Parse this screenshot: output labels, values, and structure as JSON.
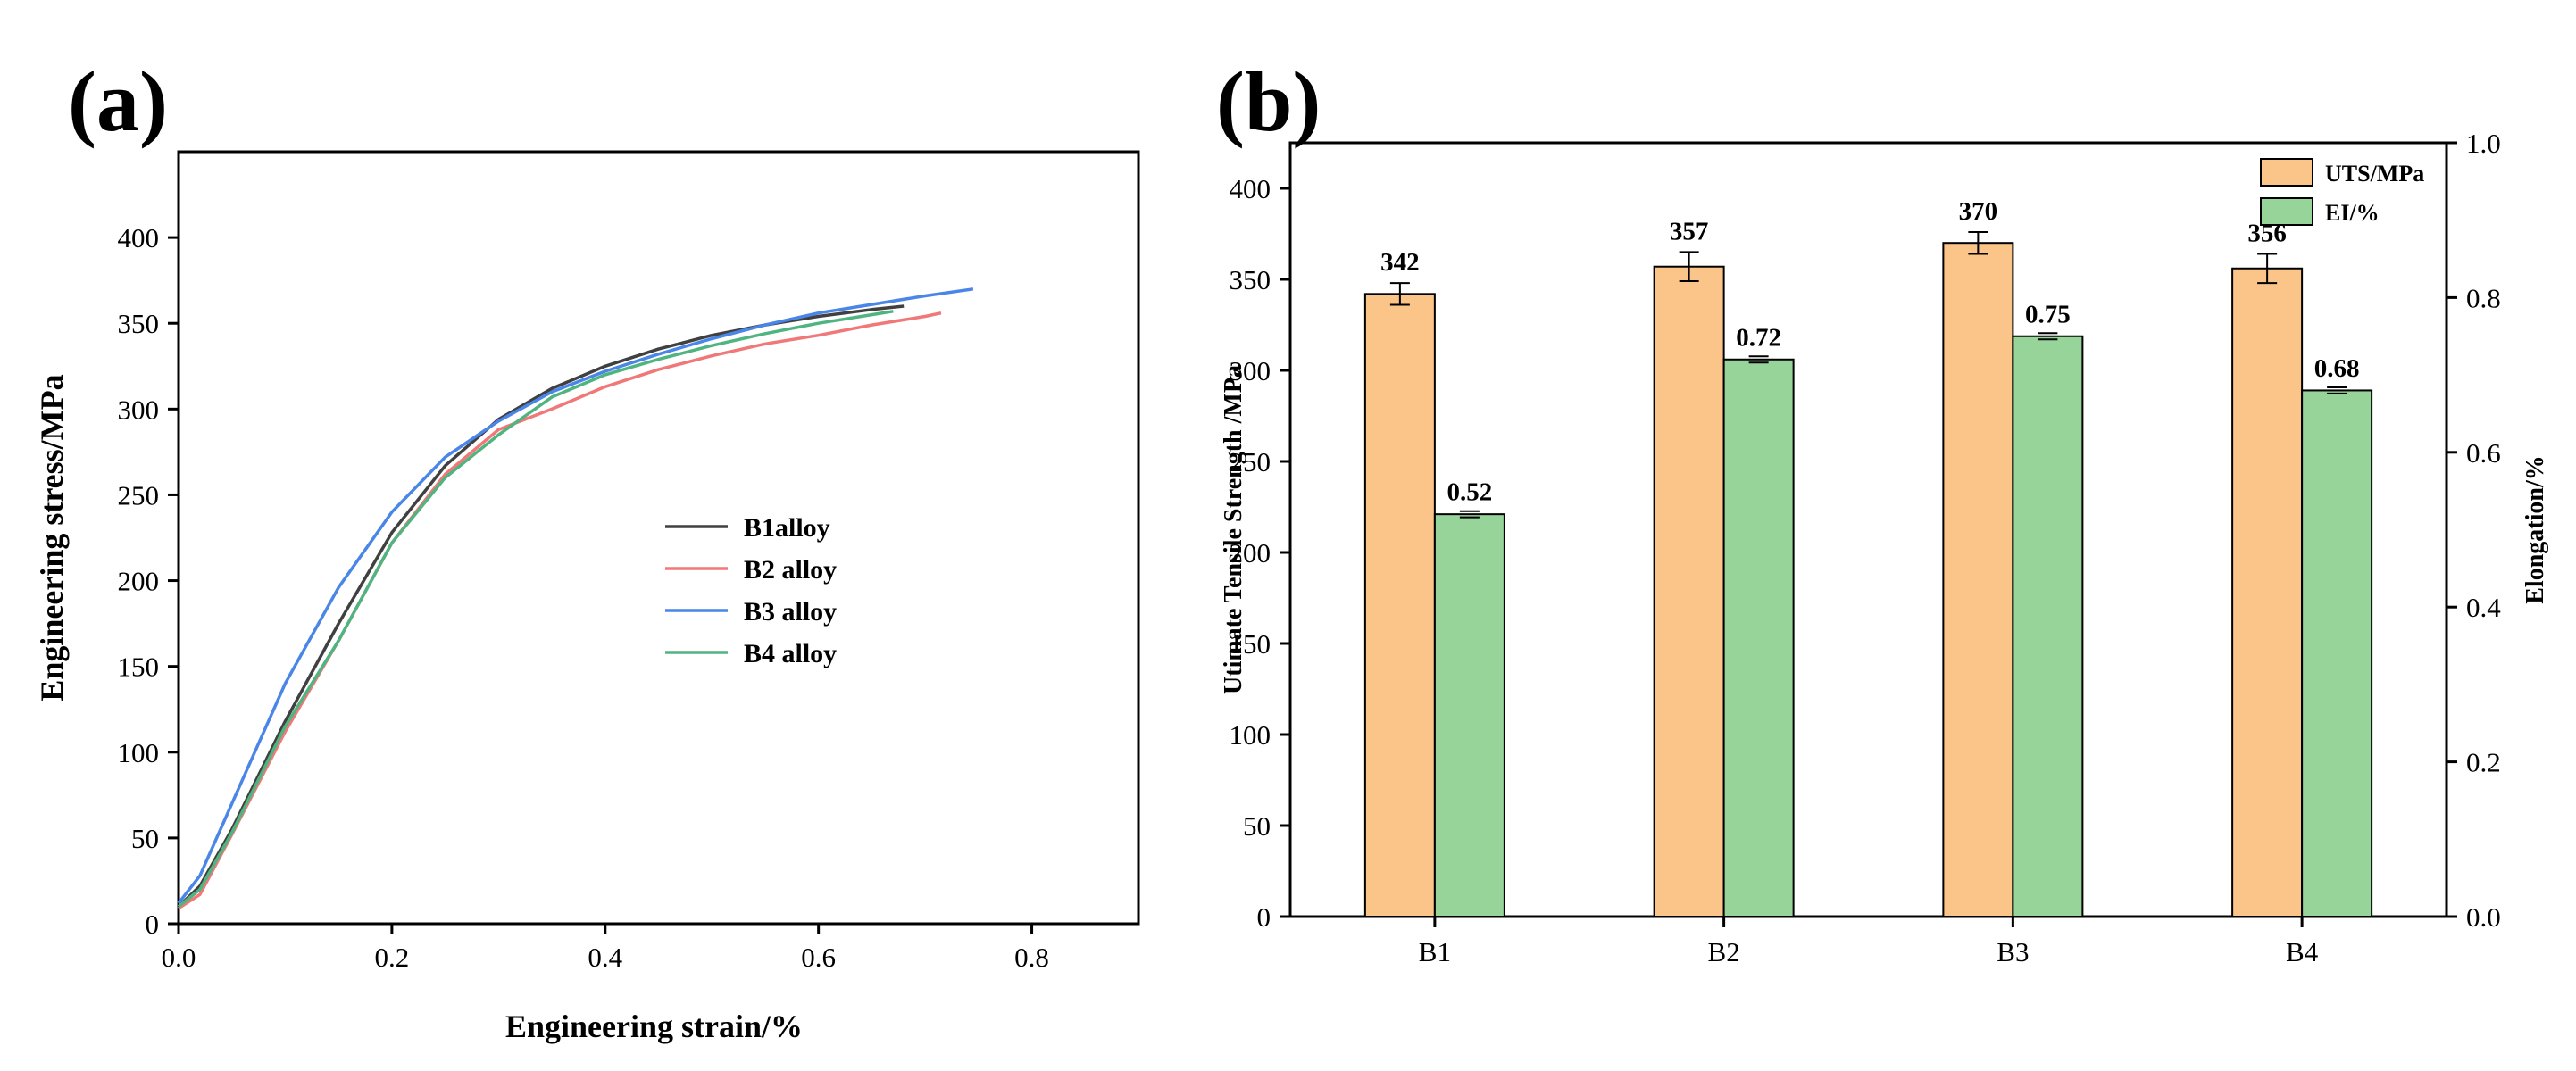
{
  "panels": {
    "a": {
      "label": "(a)"
    },
    "b": {
      "label": "(b)"
    }
  },
  "chart_data": [
    {
      "type": "line",
      "panel": "a",
      "xlabel": "Engineering strain/%",
      "ylabel": "Engineering stress/MPa",
      "xlim": [
        0,
        0.9
      ],
      "ylim": [
        0,
        450
      ],
      "xticks": [
        "0.0",
        "0.2",
        "0.4",
        "0.6",
        "0.8"
      ],
      "xtick_values": [
        0,
        0.2,
        0.4,
        0.6,
        0.8
      ],
      "yticks": [
        "0",
        "50",
        "100",
        "150",
        "200",
        "250",
        "300",
        "350",
        "400"
      ],
      "ytick_values": [
        0,
        50,
        100,
        150,
        200,
        250,
        300,
        350,
        400
      ],
      "legend_position": "center",
      "series": [
        {
          "name": "B1alloy",
          "color": "#404040",
          "x": [
            0.0,
            0.02,
            0.05,
            0.1,
            0.15,
            0.2,
            0.25,
            0.3,
            0.35,
            0.4,
            0.45,
            0.5,
            0.55,
            0.6,
            0.65,
            0.68
          ],
          "y": [
            10,
            22,
            55,
            118,
            175,
            228,
            267,
            294,
            312,
            325,
            335,
            343,
            349,
            354,
            358,
            360
          ]
        },
        {
          "name": "B2 alloy",
          "color": "#f07878",
          "x": [
            0.0,
            0.02,
            0.05,
            0.1,
            0.15,
            0.2,
            0.25,
            0.3,
            0.35,
            0.4,
            0.45,
            0.5,
            0.55,
            0.6,
            0.65,
            0.7,
            0.715
          ],
          "y": [
            9,
            17,
            52,
            112,
            165,
            222,
            262,
            288,
            300,
            313,
            323,
            331,
            338,
            343,
            349,
            354,
            356
          ]
        },
        {
          "name": "B3 alloy",
          "color": "#4a86e8",
          "x": [
            0.0,
            0.02,
            0.05,
            0.1,
            0.15,
            0.2,
            0.25,
            0.3,
            0.35,
            0.4,
            0.45,
            0.5,
            0.55,
            0.6,
            0.65,
            0.7,
            0.745
          ],
          "y": [
            12,
            28,
            70,
            140,
            196,
            240,
            272,
            293,
            310,
            322,
            332,
            341,
            349,
            356,
            361,
            366,
            370
          ]
        },
        {
          "name": "B4 alloy",
          "color": "#50b480",
          "x": [
            0.0,
            0.02,
            0.05,
            0.1,
            0.15,
            0.2,
            0.25,
            0.3,
            0.35,
            0.4,
            0.45,
            0.5,
            0.55,
            0.6,
            0.65,
            0.67
          ],
          "y": [
            10,
            20,
            53,
            115,
            165,
            222,
            260,
            285,
            307,
            320,
            329,
            337,
            344,
            350,
            355,
            357
          ]
        }
      ]
    },
    {
      "type": "bar",
      "panel": "b",
      "categories": [
        "B1",
        "B2",
        "B3",
        "B4"
      ],
      "ylabel": "Utimate Tensile Strength /MPa",
      "ylabel_right": "Elongation/%",
      "ylim": [
        0,
        425
      ],
      "ylim_right": [
        0,
        1.0
      ],
      "yticks": [
        "0",
        "50",
        "100",
        "150",
        "200",
        "250",
        "300",
        "350",
        "400"
      ],
      "ytick_values": [
        0,
        50,
        100,
        150,
        200,
        250,
        300,
        350,
        400
      ],
      "yticks_right": [
        "0.0",
        "0.2",
        "0.4",
        "0.6",
        "0.8",
        "1.0"
      ],
      "ytick_right_values": [
        0.0,
        0.2,
        0.4,
        0.6,
        0.8,
        1.0
      ],
      "legend_position": "top-right",
      "series": [
        {
          "name": "UTS/MPa",
          "axis": "left",
          "color": "#fbc58a",
          "values": [
            342,
            357,
            370,
            356
          ],
          "errors": [
            6,
            8,
            6,
            8
          ],
          "labels": [
            "342",
            "357",
            "370",
            "356"
          ]
        },
        {
          "name": "EI/%",
          "axis": "right",
          "color": "#96d49a",
          "values": [
            0.52,
            0.72,
            0.75,
            0.68
          ],
          "errors": [
            0.004,
            0.004,
            0.004,
            0.004
          ],
          "labels": [
            "0.52",
            "0.72",
            "0.75",
            "0.68"
          ]
        }
      ]
    }
  ]
}
